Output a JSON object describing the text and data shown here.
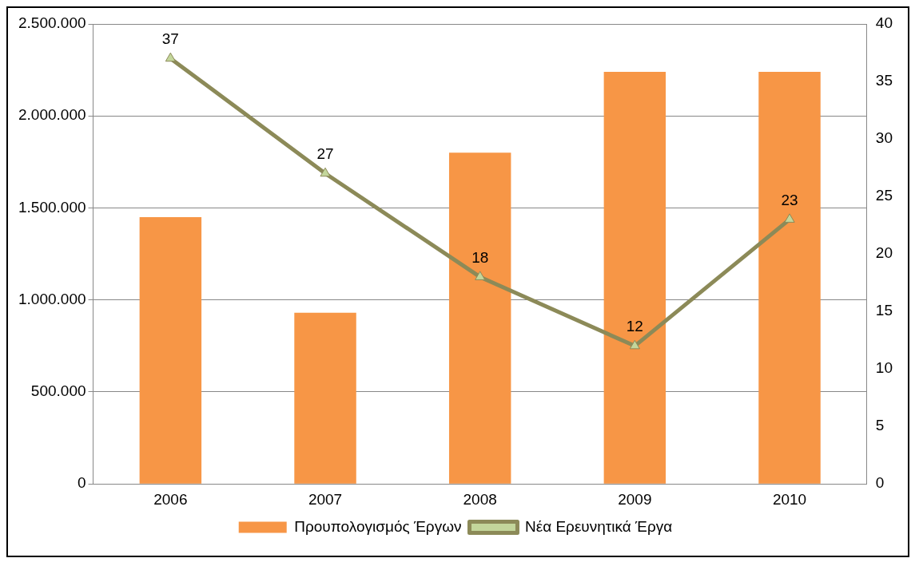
{
  "chart_data": {
    "type": "bar",
    "categories": [
      "2006",
      "2007",
      "2008",
      "2009",
      "2010"
    ],
    "series": [
      {
        "name": "Προυπολογισμός Έργων",
        "color": "#f79646",
        "values": [
          1450000,
          930000,
          1800000,
          2240000,
          2240000
        ]
      },
      {
        "name": "Νέα Ερευνητικά Έργα",
        "type": "line",
        "axis": "y2",
        "color": "#8c8a58",
        "marker": "triangle",
        "values": [
          37,
          27,
          18,
          12,
          23
        ],
        "value_labels": [
          "37",
          "27",
          "18",
          "12",
          "23"
        ]
      }
    ],
    "ylim": [
      0,
      2500000
    ],
    "yticks": [
      0,
      {
        "value": 500000,
        "label": "500.000"
      },
      {
        "value": 1000000,
        "label": "1.000.000"
      },
      {
        "value": 1500000,
        "label": "1.500.000"
      },
      {
        "value": 2000000,
        "label": "2.000.000"
      },
      {
        "value": 2500000,
        "label": "2.500.000"
      }
    ],
    "y2lim": [
      0,
      40
    ],
    "y2ticks": [
      0,
      5,
      10,
      15,
      20,
      25,
      30,
      35,
      40
    ],
    "grid": "y",
    "legend": "bottom"
  }
}
